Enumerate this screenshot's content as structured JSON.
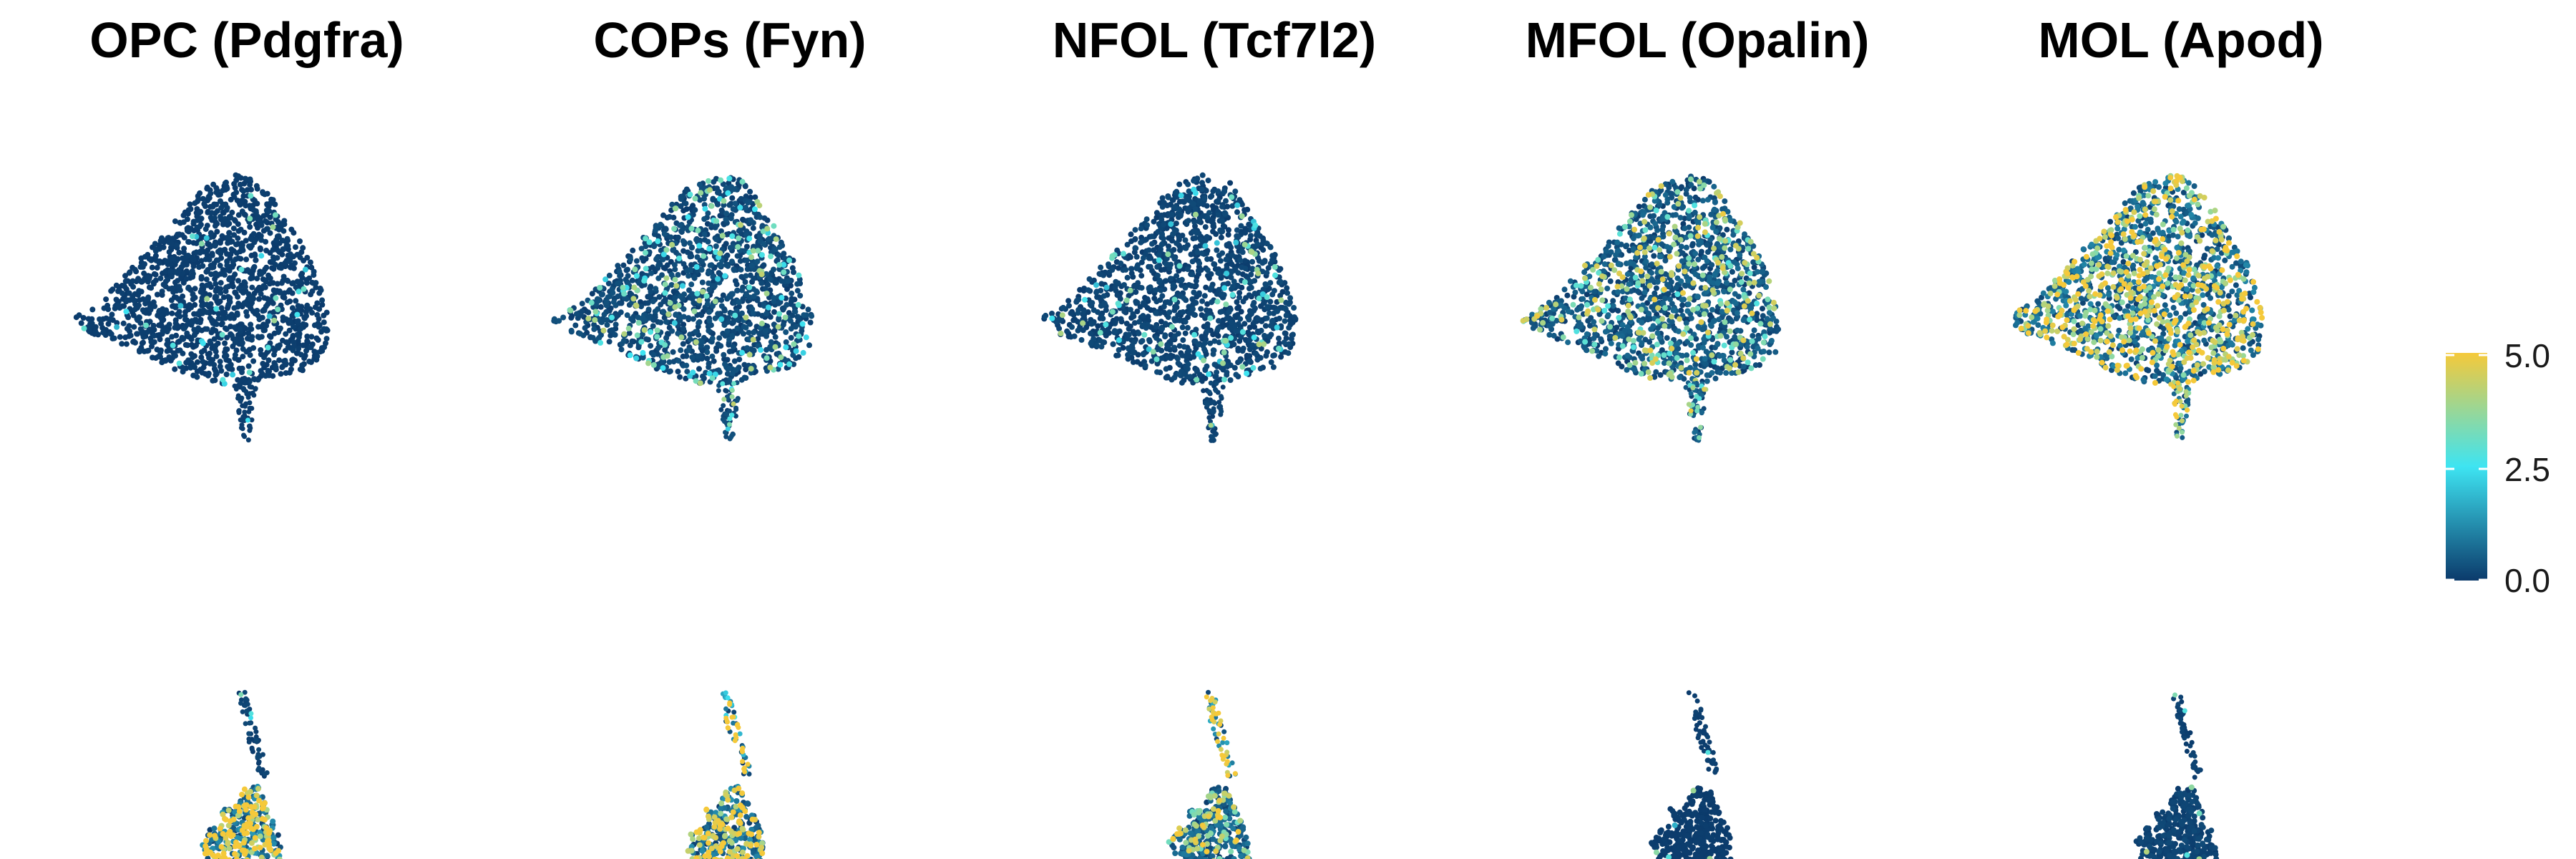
{
  "chart_data": {
    "type": "scatter",
    "description_source": "UMAP feature plots of marker gene expression",
    "panels": [
      {
        "title": "OPC (Pdgfra)",
        "expression": {
          "main_mean": 0.15,
          "main_hot_fraction": 0.02,
          "small_mean": 2.3,
          "small_hot_fraction": 0.45,
          "stalk_mean": 0.4
        }
      },
      {
        "title": "COPs (Fyn)",
        "expression": {
          "main_mean": 0.6,
          "main_hot_fraction": 0.12,
          "small_mean": 2.2,
          "small_hot_fraction": 0.35,
          "stalk_mean": 4.6
        }
      },
      {
        "title": "NFOL (Tcf7l2)",
        "expression": {
          "main_mean": 0.4,
          "main_hot_fraction": 0.05,
          "small_mean": 1.6,
          "small_hot_fraction": 0.25,
          "stalk_mean": 2.8
        }
      },
      {
        "title": "MFOL (Opalin)",
        "expression": {
          "main_mean": 1.2,
          "main_hot_fraction": 0.2,
          "small_mean": 0.1,
          "small_hot_fraction": 0.01,
          "stalk_mean": 0.2
        }
      },
      {
        "title": "MOL (Apod)",
        "expression": {
          "main_mean": 1.9,
          "main_hot_fraction": 0.38,
          "small_mean": 0.4,
          "small_hot_fraction": 0.03,
          "stalk_mean": 0.3
        }
      }
    ],
    "colorbar": {
      "range": [
        0,
        5
      ],
      "ticks": [
        "0.0",
        "2.5",
        "5.0"
      ],
      "colors": [
        "#0b3a6b",
        "#3ee4f2",
        "#f5c93a"
      ]
    },
    "legend_placement": "right",
    "axes_shown": false,
    "grid": false
  }
}
